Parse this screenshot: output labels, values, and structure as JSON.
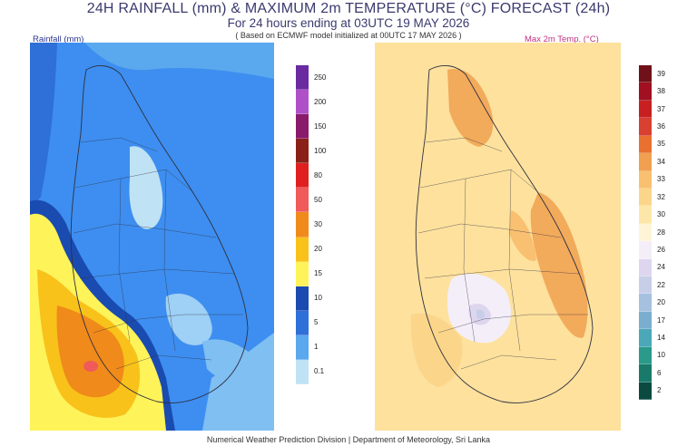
{
  "header": {
    "title": "24H RAINFALL (mm) & MAXIMUM 2m TEMPERATURE (°C) FORECAST (24h)",
    "subtitle": "For 24 hours ending at 03UTC 19 MAY 2026",
    "model_note": "( Based on ECMWF model initialized at 00UTC 17 MAY 2026 )"
  },
  "rain_panel": {
    "label": "Rainfall (mm)",
    "legend": [
      {
        "value": "0.1",
        "color": "#bfe3f5"
      },
      {
        "value": "1",
        "color": "#5aa8ee"
      },
      {
        "value": "5",
        "color": "#2f6fd8"
      },
      {
        "value": "10",
        "color": "#1a4bb0"
      },
      {
        "value": "15",
        "color": "#fff35a"
      },
      {
        "value": "20",
        "color": "#f8c21a"
      },
      {
        "value": "30",
        "color": "#f08a1a"
      },
      {
        "value": "50",
        "color": "#f05a5a"
      },
      {
        "value": "80",
        "color": "#e02020"
      },
      {
        "value": "100",
        "color": "#8a2018"
      },
      {
        "value": "150",
        "color": "#8a1a6a"
      },
      {
        "value": "200",
        "color": "#b050c8"
      },
      {
        "value": "250",
        "color": "#6a2aa0"
      }
    ]
  },
  "temp_panel": {
    "label": "Max 2m Temp. (°C)",
    "legend": [
      {
        "value": "2",
        "color": "#0a4a40"
      },
      {
        "value": "6",
        "color": "#1a7a6a"
      },
      {
        "value": "10",
        "color": "#2a9a8a"
      },
      {
        "value": "14",
        "color": "#4aa8b8"
      },
      {
        "value": "17",
        "color": "#7aaed0"
      },
      {
        "value": "20",
        "color": "#a6c0e0"
      },
      {
        "value": "22",
        "color": "#c7cfe8"
      },
      {
        "value": "24",
        "color": "#ddd6ee"
      },
      {
        "value": "26",
        "color": "#f4eef8"
      },
      {
        "value": "28",
        "color": "#fff5d6"
      },
      {
        "value": "30",
        "color": "#fde7a8"
      },
      {
        "value": "32",
        "color": "#fbd68a"
      },
      {
        "value": "33",
        "color": "#f8c070"
      },
      {
        "value": "34",
        "color": "#f0a050"
      },
      {
        "value": "35",
        "color": "#e87030"
      },
      {
        "value": "36",
        "color": "#d84030"
      },
      {
        "value": "37",
        "color": "#c82020"
      },
      {
        "value": "38",
        "color": "#a01020"
      },
      {
        "value": "39",
        "color": "#701018"
      }
    ]
  },
  "footer": {
    "credit": "Numerical Weather Prediction Division | Department of Meteorology, Sri Lanka"
  }
}
